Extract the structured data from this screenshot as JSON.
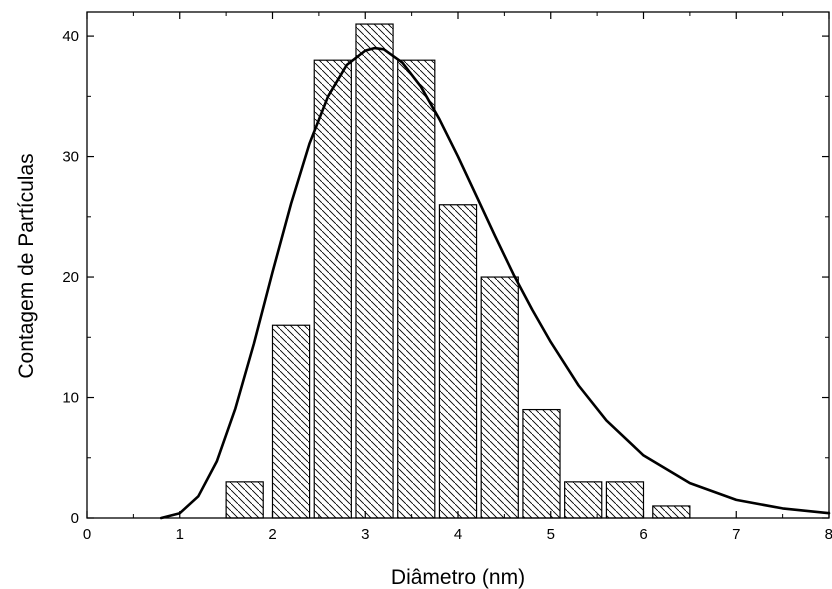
{
  "chart_data": {
    "type": "bar",
    "title": "",
    "xlabel": "Diâmetro (nm)",
    "ylabel": "Contagem de Partículas",
    "xlim": [
      0,
      8
    ],
    "ylim": [
      0,
      42
    ],
    "x_ticks": [
      "0",
      "1",
      "2",
      "3",
      "4",
      "5",
      "6",
      "7",
      "8"
    ],
    "y_ticks": [
      "0",
      "10",
      "20",
      "30",
      "40"
    ],
    "bin_width": 0.4,
    "bins": [
      {
        "x": 1.7,
        "value": 3
      },
      {
        "x": 2.2,
        "value": 16
      },
      {
        "x": 2.65,
        "value": 38
      },
      {
        "x": 3.1,
        "value": 41
      },
      {
        "x": 3.55,
        "value": 38
      },
      {
        "x": 4.0,
        "value": 26
      },
      {
        "x": 4.45,
        "value": 20
      },
      {
        "x": 4.9,
        "value": 9
      },
      {
        "x": 5.35,
        "value": 3
      },
      {
        "x": 5.8,
        "value": 3
      },
      {
        "x": 6.3,
        "value": 1
      }
    ],
    "fit_curve": {
      "type": "lognormal",
      "x": [
        0.8,
        1.0,
        1.2,
        1.4,
        1.6,
        1.8,
        2.0,
        2.2,
        2.4,
        2.6,
        2.8,
        3.0,
        3.1,
        3.2,
        3.4,
        3.6,
        3.8,
        4.0,
        4.2,
        4.4,
        4.6,
        4.8,
        5.0,
        5.3,
        5.6,
        6.0,
        6.5,
        7.0,
        7.5,
        8.0
      ],
      "y": [
        0.0,
        0.4,
        1.8,
        4.7,
        9.1,
        14.5,
        20.4,
        26.1,
        31.1,
        35.0,
        37.6,
        38.8,
        39.0,
        38.9,
        37.8,
        35.8,
        33.1,
        30.0,
        26.7,
        23.4,
        20.2,
        17.3,
        14.6,
        11.0,
        8.1,
        5.2,
        2.9,
        1.5,
        0.8,
        0.4
      ]
    },
    "grid": false,
    "legend": "none",
    "bar_fill": "diagonal-hatch",
    "colors": {
      "bar_edge": "#000000",
      "hatch": "#000000",
      "curve": "#000000",
      "background": "#ffffff"
    }
  }
}
